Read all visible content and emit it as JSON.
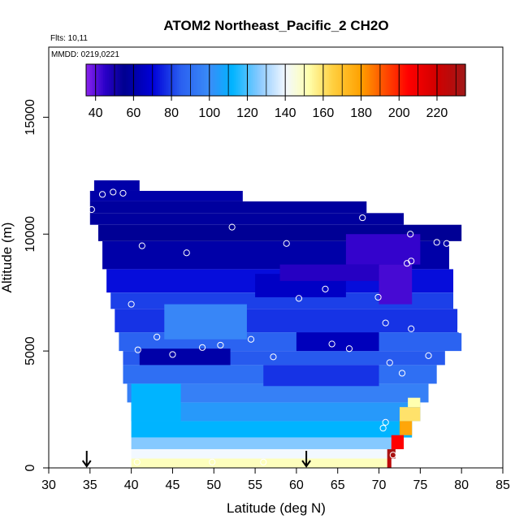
{
  "chart_data": {
    "type": "heatmap",
    "title": "ATOM2 Northeast_Pacific_2 CH2O",
    "subtitle_flights": "Flts: 10,11",
    "subtitle_dates": "MMDD: 0219,0221",
    "xlabel": "Latitude (deg N)",
    "ylabel": "Altitude (m)",
    "xlim": [
      30,
      85
    ],
    "ylim": [
      0,
      18000
    ],
    "x_ticks": [
      "30",
      "35",
      "40",
      "45",
      "50",
      "55",
      "60",
      "65",
      "70",
      "75",
      "80",
      "85"
    ],
    "y_ticks": [
      "0",
      "5000",
      "10000",
      "15000"
    ],
    "colorbar": {
      "range": [
        35,
        235
      ],
      "tick_labels": [
        "40",
        "60",
        "80",
        "100",
        "120",
        "140",
        "160",
        "180",
        "200",
        "220"
      ],
      "stops": [
        {
          "v": 35,
          "c": "#8B22EE"
        },
        {
          "v": 45,
          "c": "#2A00C8"
        },
        {
          "v": 55,
          "c": "#000090"
        },
        {
          "v": 70,
          "c": "#0000D8"
        },
        {
          "v": 85,
          "c": "#2A60F0"
        },
        {
          "v": 100,
          "c": "#3A8CF8"
        },
        {
          "v": 112,
          "c": "#00B4FF"
        },
        {
          "v": 127,
          "c": "#8FCBFF"
        },
        {
          "v": 140,
          "c": "#F2F8FF"
        },
        {
          "v": 152,
          "c": "#FFFFB0"
        },
        {
          "v": 165,
          "c": "#FFD040"
        },
        {
          "v": 180,
          "c": "#FFA000"
        },
        {
          "v": 192,
          "c": "#FF5000"
        },
        {
          "v": 205,
          "c": "#FF0000"
        },
        {
          "v": 220,
          "c": "#D00000"
        },
        {
          "v": 235,
          "c": "#A01818"
        }
      ]
    },
    "cells": [
      {
        "lat": [
          35.5,
          41
        ],
        "alt": [
          11850,
          12300
        ],
        "value": 60
      },
      {
        "lat": [
          35,
          53.5
        ],
        "alt": [
          11400,
          11850
        ],
        "value": 60
      },
      {
        "lat": [
          35,
          68.5
        ],
        "alt": [
          10900,
          11400
        ],
        "value": 58
      },
      {
        "lat": [
          35,
          73
        ],
        "alt": [
          10400,
          10900
        ],
        "value": 58
      },
      {
        "lat": [
          36,
          80
        ],
        "alt": [
          9700,
          10400
        ],
        "value": 56
      },
      {
        "lat": [
          36.5,
          78.5
        ],
        "alt": [
          8500,
          9700
        ],
        "value": 60
      },
      {
        "lat": [
          37,
          79
        ],
        "alt": [
          7500,
          8500
        ],
        "value": 72
      },
      {
        "lat": [
          37.5,
          79
        ],
        "alt": [
          6800,
          7500
        ],
        "value": 80
      },
      {
        "lat": [
          38,
          79.5
        ],
        "alt": [
          5800,
          6800
        ],
        "value": 78
      },
      {
        "lat": [
          38.5,
          80
        ],
        "alt": [
          5000,
          5800
        ],
        "value": 86
      },
      {
        "lat": [
          39,
          78
        ],
        "alt": [
          4400,
          5000
        ],
        "value": 84
      },
      {
        "lat": [
          39,
          77
        ],
        "alt": [
          3600,
          4400
        ],
        "value": 90
      },
      {
        "lat": [
          39.5,
          76
        ],
        "alt": [
          2800,
          3600
        ],
        "value": 96
      },
      {
        "lat": [
          40,
          75
        ],
        "alt": [
          2000,
          2800
        ],
        "value": 104
      },
      {
        "lat": [
          40,
          74
        ],
        "alt": [
          1300,
          2000
        ],
        "value": 112
      },
      {
        "lat": [
          40,
          73
        ],
        "alt": [
          800,
          1300
        ],
        "value": 126
      },
      {
        "lat": [
          40,
          72
        ],
        "alt": [
          400,
          800
        ],
        "value": 140
      },
      {
        "lat": [
          40,
          71
        ],
        "alt": [
          0,
          400
        ],
        "value": 150
      },
      {
        "lat": [
          44,
          54
        ],
        "alt": [
          5500,
          7000
        ],
        "value": 98
      },
      {
        "lat": [
          41,
          52
        ],
        "alt": [
          4400,
          5100
        ],
        "value": 60
      },
      {
        "lat": [
          55,
          66
        ],
        "alt": [
          7300,
          8300
        ],
        "value": 66
      },
      {
        "lat": [
          58,
          70
        ],
        "alt": [
          8000,
          8700
        ],
        "value": 46
      },
      {
        "lat": [
          66,
          75
        ],
        "alt": [
          8700,
          10000
        ],
        "value": 44
      },
      {
        "lat": [
          70,
          74
        ],
        "alt": [
          7000,
          8700
        ],
        "value": 42
      },
      {
        "lat": [
          60,
          70
        ],
        "alt": [
          5000,
          5800
        ],
        "value": 64
      },
      {
        "lat": [
          56,
          70
        ],
        "alt": [
          3500,
          4400
        ],
        "value": 78
      },
      {
        "lat": [
          40,
          46
        ],
        "alt": [
          2000,
          3600
        ],
        "value": 112
      },
      {
        "lat": [
          72.5,
          75
        ],
        "alt": [
          2000,
          2600
        ],
        "value": 160
      },
      {
        "lat": [
          73.5,
          75
        ],
        "alt": [
          2600,
          3000
        ],
        "value": 152
      },
      {
        "lat": [
          72.5,
          74
        ],
        "alt": [
          1400,
          2000
        ],
        "value": 178
      },
      {
        "lat": [
          71.5,
          73
        ],
        "alt": [
          800,
          1400
        ],
        "value": 205
      },
      {
        "lat": [
          71,
          72
        ],
        "alt": [
          400,
          800
        ],
        "value": 232
      },
      {
        "lat": [
          71,
          71.5
        ],
        "alt": [
          0,
          400
        ],
        "value": 226
      }
    ],
    "points": [
      {
        "lat": 36.5,
        "alt": 11700
      },
      {
        "lat": 37.8,
        "alt": 11800
      },
      {
        "lat": 39.0,
        "alt": 11750
      },
      {
        "lat": 35.2,
        "alt": 11050
      },
      {
        "lat": 52.2,
        "alt": 10300
      },
      {
        "lat": 68.0,
        "alt": 10700
      },
      {
        "lat": 73.8,
        "alt": 10000
      },
      {
        "lat": 41.3,
        "alt": 9500
      },
      {
        "lat": 58.8,
        "alt": 9600
      },
      {
        "lat": 46.7,
        "alt": 9200
      },
      {
        "lat": 77.0,
        "alt": 9650
      },
      {
        "lat": 78.2,
        "alt": 9600
      },
      {
        "lat": 73.4,
        "alt": 8750
      },
      {
        "lat": 73.9,
        "alt": 8850
      },
      {
        "lat": 63.5,
        "alt": 7650
      },
      {
        "lat": 60.3,
        "alt": 7250
      },
      {
        "lat": 69.9,
        "alt": 7300
      },
      {
        "lat": 40.0,
        "alt": 7000
      },
      {
        "lat": 70.8,
        "alt": 6200
      },
      {
        "lat": 73.9,
        "alt": 5950
      },
      {
        "lat": 79.9,
        "alt": 5900
      },
      {
        "lat": 43.1,
        "alt": 5600
      },
      {
        "lat": 54.5,
        "alt": 5500
      },
      {
        "lat": 64.3,
        "alt": 5300
      },
      {
        "lat": 50.8,
        "alt": 5250
      },
      {
        "lat": 48.6,
        "alt": 5150
      },
      {
        "lat": 66.4,
        "alt": 5100
      },
      {
        "lat": 40.8,
        "alt": 5050
      },
      {
        "lat": 45.0,
        "alt": 4850
      },
      {
        "lat": 57.2,
        "alt": 4750
      },
      {
        "lat": 76.0,
        "alt": 4800
      },
      {
        "lat": 71.3,
        "alt": 4500
      },
      {
        "lat": 72.8,
        "alt": 4050
      },
      {
        "lat": 70.8,
        "alt": 1950
      },
      {
        "lat": 70.5,
        "alt": 1700
      },
      {
        "lat": 40.7,
        "alt": 250
      },
      {
        "lat": 49.8,
        "alt": 250
      },
      {
        "lat": 56.0,
        "alt": 250
      },
      {
        "lat": 71.7,
        "alt": 550
      }
    ],
    "arrows": [
      {
        "lat": 34.6
      },
      {
        "lat": 61.2
      }
    ]
  }
}
